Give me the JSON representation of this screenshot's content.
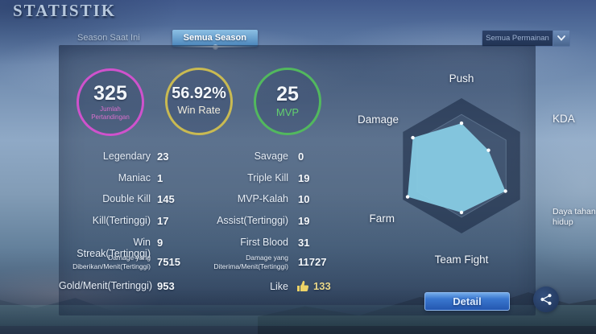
{
  "header": {
    "title": "STATISTIK",
    "tabs": [
      {
        "label": "Season Saat Ini",
        "active": false
      },
      {
        "label": "Semua Season",
        "active": true
      }
    ],
    "filter_dropdown": {
      "value": "Semua Permainan",
      "icon": "chevron-down-icon",
      "caret": "❮"
    }
  },
  "summary_circles": [
    {
      "value": "325",
      "label": "Jumlah\nPertandingan",
      "ring_color": "#cf52cc",
      "label_color": "#d970cd"
    },
    {
      "value": "56.92%",
      "label": "Win Rate",
      "ring_color": "#c9ba52",
      "label_color": "#eeeadb"
    },
    {
      "value": "25",
      "label": "MVP",
      "ring_color": "#52b85e",
      "label_color": "#62d06e"
    }
  ],
  "stats": {
    "left": [
      {
        "label": "Legendary",
        "value": "23"
      },
      {
        "label": "Maniac",
        "value": "1"
      },
      {
        "label": "Double Kill",
        "value": "145"
      },
      {
        "label": "Kill(Tertinggi)",
        "value": "17"
      },
      {
        "label": "Win Streak(Tertinggi)",
        "value": "9"
      },
      {
        "label": "Damage yang\nDiberikan/Menit(Tertinggi)",
        "value": "7515"
      },
      {
        "label": "Gold/Menit(Tertinggi)",
        "value": "953"
      }
    ],
    "right": [
      {
        "label": "Savage",
        "value": "0"
      },
      {
        "label": "Triple Kill",
        "value": "19"
      },
      {
        "label": "MVP-Kalah",
        "value": "10"
      },
      {
        "label": "Assist(Tertinggi)",
        "value": "19"
      },
      {
        "label": "First Blood",
        "value": "31"
      },
      {
        "label": "Damage yang\nDiterima/Menit(Tertinggi)",
        "value": "11727"
      }
    ],
    "like": {
      "label": "Like",
      "icon": "thumbs-up-icon",
      "count": "133",
      "thumb_color": "#ecd266"
    }
  },
  "chart_data": {
    "type": "radar",
    "axes": [
      "Push",
      "KDA",
      "Daya tahan\nhidup",
      "Team Fight",
      "Farm",
      "Damage"
    ],
    "values_ratio": [
      0.63,
      0.46,
      0.75,
      0.69,
      0.92,
      0.83
    ],
    "max": 1,
    "fill_color": "#87cbe3",
    "grid": "hexagon-2-rings",
    "legend": "none"
  },
  "footer": {
    "detail_label": "Detail",
    "share_icon": "share-icon"
  }
}
